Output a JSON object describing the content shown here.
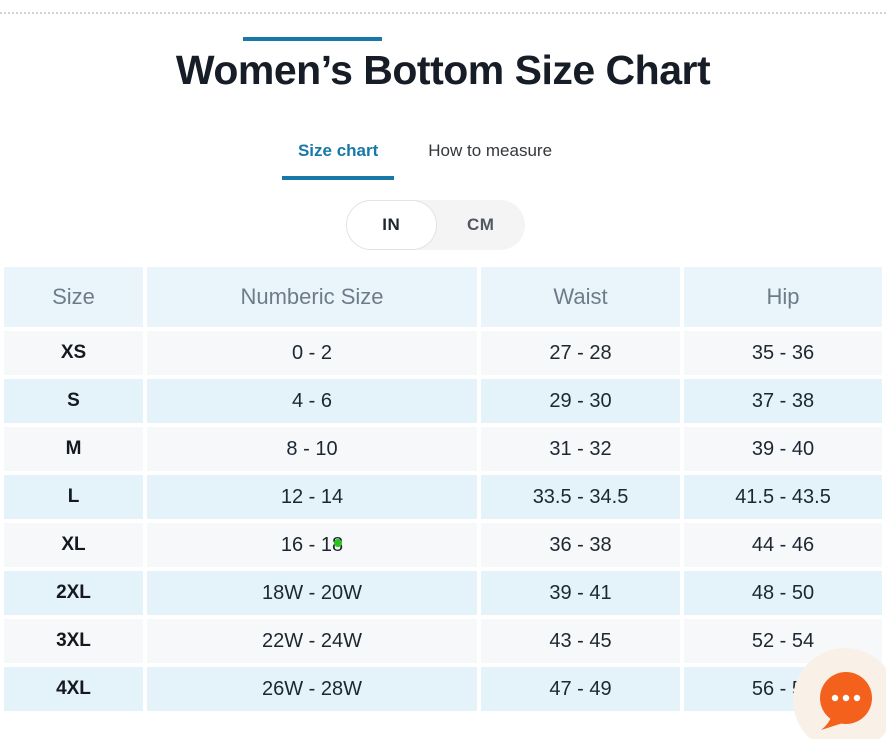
{
  "page": {
    "title": "Women’s Bottom Size Chart",
    "accent_color": "#1878a8"
  },
  "tabs": [
    {
      "label": "Size chart",
      "active": true
    },
    {
      "label": "How to measure",
      "active": false
    }
  ],
  "unit_toggle": {
    "options": [
      {
        "label": "IN",
        "selected": true
      },
      {
        "label": "CM",
        "selected": false
      }
    ]
  },
  "size_chart": {
    "columns": [
      "Size",
      "Numberic Size",
      "Waist",
      "Hip"
    ],
    "rows": [
      [
        "XS",
        "0 - 2",
        "27 - 28",
        "35 - 36"
      ],
      [
        "S",
        "4 - 6",
        "29 - 30",
        "37 - 38"
      ],
      [
        "M",
        "8 - 10",
        "31 - 32",
        "39 - 40"
      ],
      [
        "L",
        "12 - 14",
        "33.5 - 34.5",
        "41.5 - 43.5"
      ],
      [
        "XL",
        "16 - 18",
        "36 - 38",
        "44 - 46"
      ],
      [
        "2XL",
        "18W - 20W",
        "39 - 41",
        "48 - 50"
      ],
      [
        "3XL",
        "22W - 24W",
        "43 - 45",
        "52 - 54"
      ],
      [
        "4XL",
        "26W - 28W",
        "47 - 49",
        "56 - 58"
      ]
    ],
    "row_colors": {
      "header": "#eaf5fb",
      "white": "#f7f8f9",
      "blue": "#e4f2f9"
    }
  },
  "marker_dot": {
    "color": "#2bc31e"
  },
  "chat_widget": {
    "icon": "chat-bubble-icon",
    "bubble_color": "#f4611c",
    "halo_color": "#f9f0e7"
  }
}
